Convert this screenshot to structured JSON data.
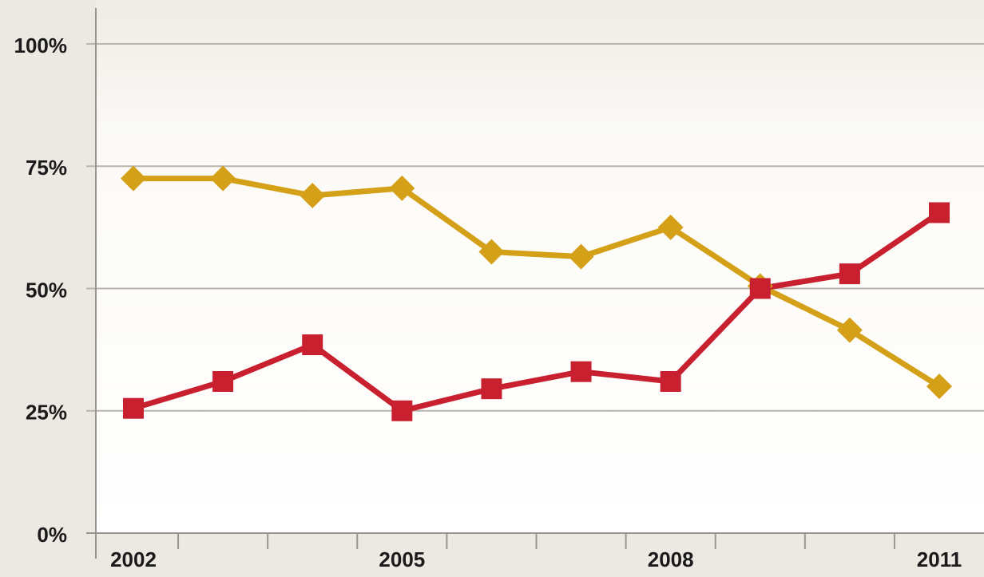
{
  "chart_data": {
    "type": "line",
    "title": "",
    "xlabel": "",
    "ylabel": "",
    "x": [
      2002,
      2003,
      2004,
      2005,
      2006,
      2007,
      2008,
      2009,
      2010,
      2011
    ],
    "x_tick_labels": [
      "2002",
      "2005",
      "2008",
      "2011"
    ],
    "x_tick_values": [
      2002,
      2005,
      2008,
      2011
    ],
    "ylim": [
      0,
      100
    ],
    "y_ticks": [
      0,
      25,
      50,
      75,
      100
    ],
    "y_tick_labels": [
      "0%",
      "25%",
      "50%",
      "75%",
      "100%"
    ],
    "grid": true,
    "legend": "none",
    "series": [
      {
        "marker": "diamond",
        "color": "#d4a017",
        "values": [
          72.5,
          72.5,
          69,
          70.5,
          57.5,
          56.5,
          62.5,
          50.5,
          41.5,
          30
        ]
      },
      {
        "marker": "square",
        "color": "#c8202f",
        "values": [
          25.5,
          31,
          38.5,
          25,
          29.5,
          33,
          31,
          50,
          53,
          65.5
        ]
      }
    ]
  }
}
